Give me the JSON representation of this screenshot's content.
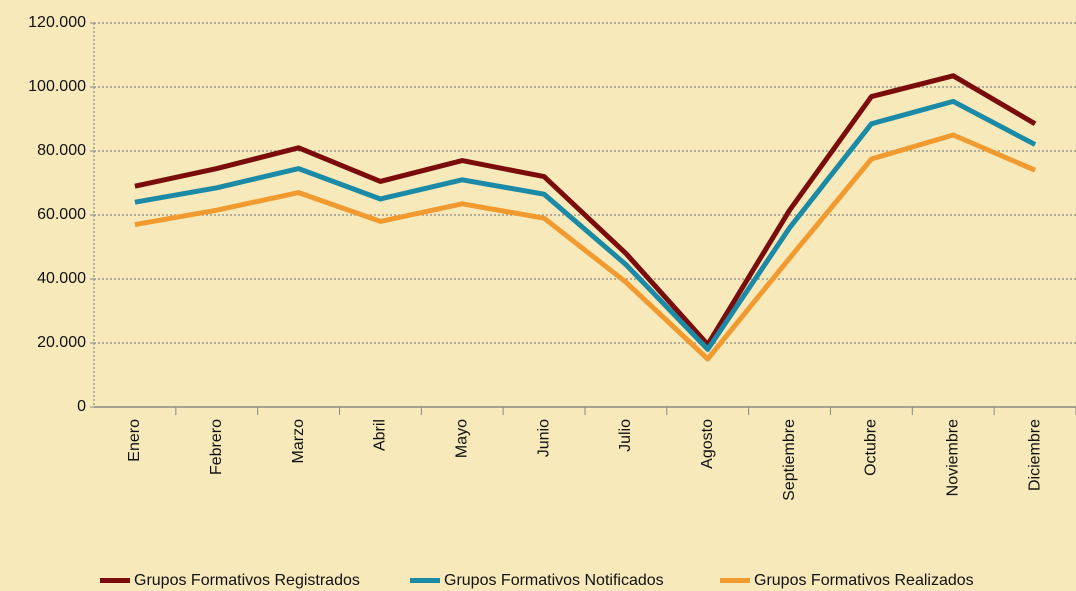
{
  "chart_data": {
    "type": "line",
    "categories": [
      "Enero",
      "Febrero",
      "Marzo",
      "Abril",
      "Mayo",
      "Junio",
      "Julio",
      "Agosto",
      "Septiembre",
      "Octubre",
      "Noviembre",
      "Diciembre"
    ],
    "series": [
      {
        "name": "Grupos Formativos Registrados",
        "color": "#7a0c0c",
        "values": [
          69000,
          74500,
          81000,
          70500,
          77000,
          72000,
          48000,
          19500,
          61500,
          97000,
          103500,
          88500
        ]
      },
      {
        "name": "Grupos Formativos Notificados",
        "color": "#1b8aa6",
        "values": [
          64000,
          68500,
          74500,
          65000,
          71000,
          66500,
          44500,
          18000,
          56000,
          88500,
          95500,
          82000
        ]
      },
      {
        "name": "Grupos Formativos Realizados",
        "color": "#f09a30",
        "values": [
          57000,
          61500,
          67000,
          58000,
          63500,
          59000,
          39000,
          15000,
          46500,
          77500,
          85000,
          74000
        ]
      }
    ],
    "ylim": [
      0,
      120000
    ],
    "yticks": [
      0,
      {
        "value": 20000,
        "label": "20.000"
      },
      {
        "value": 40000,
        "label": "40.000"
      },
      {
        "value": 60000,
        "label": "60.000"
      },
      {
        "value": 80000,
        "label": "80.000"
      },
      {
        "value": 100000,
        "label": "100.000"
      },
      {
        "value": 120000,
        "label": "120.000"
      }
    ],
    "grid": true,
    "legend": "bottom"
  }
}
